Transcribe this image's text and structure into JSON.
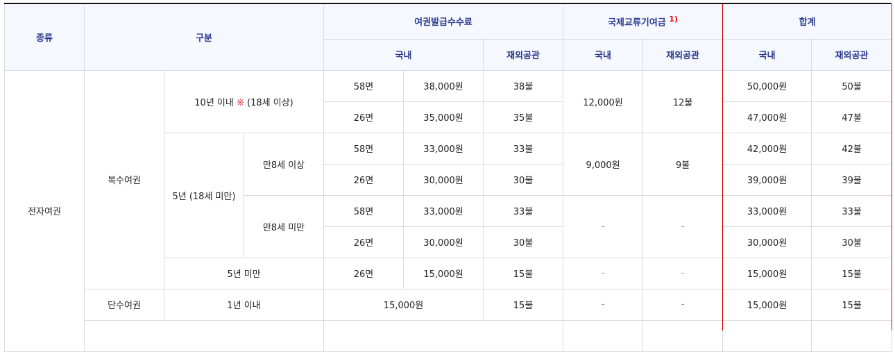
{
  "header": {
    "kind": "종류",
    "category": "구분",
    "issue_fee": "여권발급수수료",
    "exchange_fee": "국제교류기여금",
    "exchange_note": "1)",
    "total": "합계",
    "domestic": "국내",
    "overseas": "재외공관"
  },
  "body": {
    "type": "전자여권",
    "multi": "복수여권",
    "single": "단수여권",
    "ten_years": "10년 이내",
    "ten_years_mark": "※",
    "ten_years_age": "(18세 이상)",
    "five_years": "5년 (18세 미만)",
    "age8_over": "만8세 이상",
    "age8_under": "만8세 미만",
    "under_five": "5년 미만",
    "one_year": "1년 이내",
    "rows": [
      {
        "pages": "58면",
        "fee_dom": "38,000원",
        "fee_ovs": "38불",
        "total_dom": "50,000원",
        "total_ovs": "50불"
      },
      {
        "pages": "26면",
        "fee_dom": "35,000원",
        "fee_ovs": "35불",
        "total_dom": "47,000원",
        "total_ovs": "47불"
      },
      {
        "pages": "58면",
        "fee_dom": "33,000원",
        "fee_ovs": "33불",
        "total_dom": "42,000원",
        "total_ovs": "42불"
      },
      {
        "pages": "26면",
        "fee_dom": "30,000원",
        "fee_ovs": "30불",
        "total_dom": "39,000원",
        "total_ovs": "39불"
      },
      {
        "pages": "58면",
        "fee_dom": "33,000원",
        "fee_ovs": "33불",
        "total_dom": "33,000원",
        "total_ovs": "33불"
      },
      {
        "pages": "26면",
        "fee_dom": "30,000원",
        "fee_ovs": "30불",
        "total_dom": "30,000원",
        "total_ovs": "30불"
      },
      {
        "pages": "26면",
        "fee_dom": "15,000원",
        "fee_ovs": "15불",
        "total_dom": "15,000원",
        "total_ovs": "15불"
      },
      {
        "fee_dom": "15,000원",
        "fee_ovs": "15불",
        "total_dom": "15,000원",
        "total_ovs": "15불"
      }
    ],
    "exchange": [
      {
        "dom": "12,000원",
        "ovs": "12불"
      },
      {
        "dom": "9,000원",
        "ovs": "9불"
      },
      {
        "dom": "-",
        "ovs": "-"
      },
      {
        "dom": "-",
        "ovs": "-"
      },
      {
        "dom": "-",
        "ovs": "-"
      }
    ]
  }
}
